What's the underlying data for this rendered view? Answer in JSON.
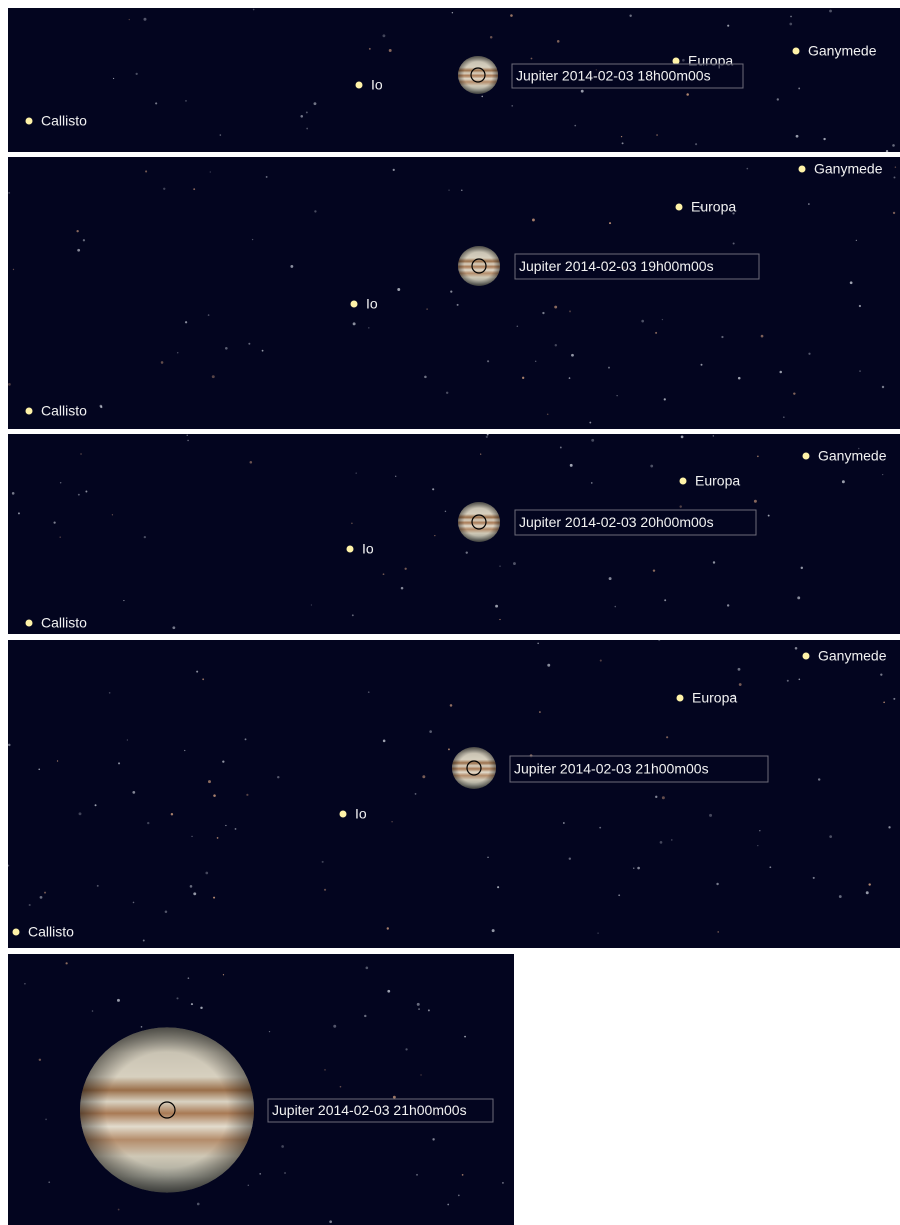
{
  "panels": [
    {
      "jupiter_label": "Jupiter 2014-02-03 18h00m00s",
      "moons": [
        "Io",
        "Callisto",
        "Europa",
        "Ganymede"
      ]
    },
    {
      "jupiter_label": "Jupiter 2014-02-03 19h00m00s",
      "moons": [
        "Io",
        "Callisto",
        "Europa",
        "Ganymede"
      ]
    },
    {
      "jupiter_label": "Jupiter 2014-02-03 20h00m00s",
      "moons": [
        "Io",
        "Callisto",
        "Europa",
        "Ganymede"
      ]
    },
    {
      "jupiter_label": "Jupiter 2014-02-03 21h00m00s",
      "moons": [
        "Io",
        "Callisto",
        "Europa",
        "Ganymede"
      ]
    },
    {
      "jupiter_label": "Jupiter 2014-02-03 21h00m00s",
      "moons": []
    }
  ]
}
